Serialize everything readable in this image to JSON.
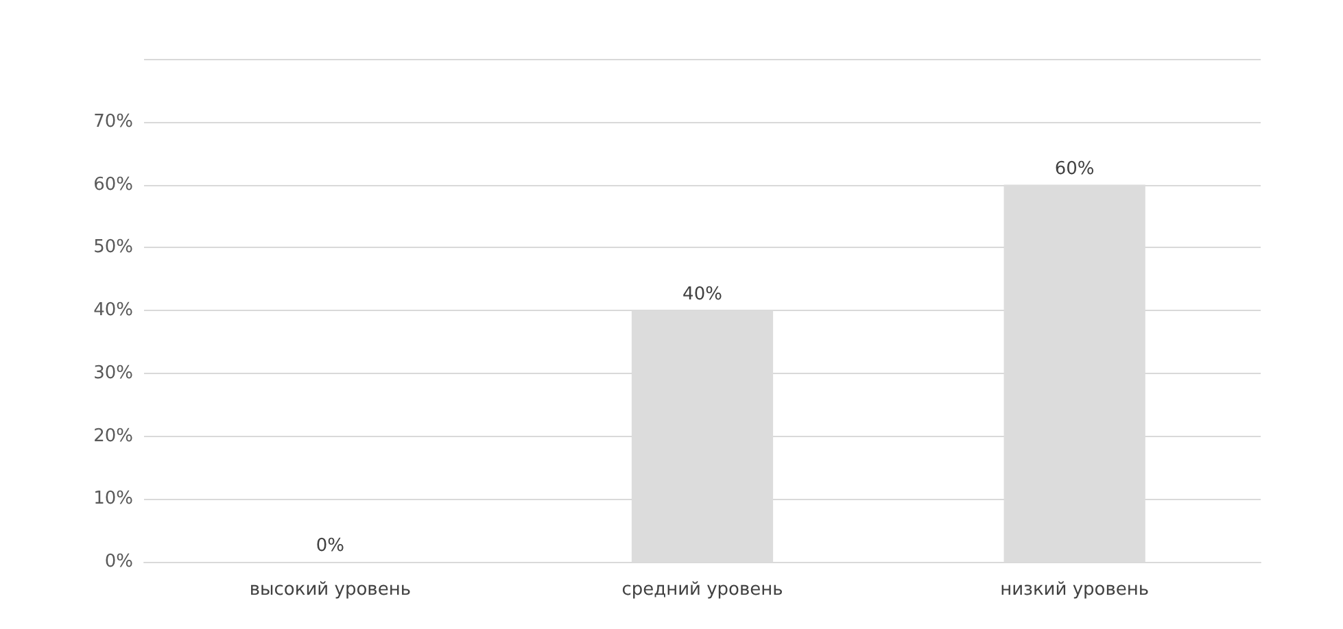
{
  "chart_data": {
    "type": "bar",
    "categories": [
      "высокий уровень",
      "средний уровень",
      "низкий уровень"
    ],
    "values": [
      0,
      40,
      60
    ],
    "color": "#dcdcdc",
    "value_labels": [
      "0%",
      "40%",
      "60%"
    ],
    "ylim": [
      0,
      80
    ],
    "yticks": [
      {
        "value": 0,
        "label": "0%"
      },
      {
        "value": 10,
        "label": "10%"
      },
      {
        "value": 20,
        "label": "20%"
      },
      {
        "value": 30,
        "label": "30%"
      },
      {
        "value": 40,
        "label": "40%"
      },
      {
        "value": 50,
        "label": "50%"
      },
      {
        "value": 60,
        "label": "60%"
      },
      {
        "value": 70,
        "label": "70%"
      },
      {
        "value": 80,
        "label": null
      }
    ],
    "grid": "y"
  }
}
